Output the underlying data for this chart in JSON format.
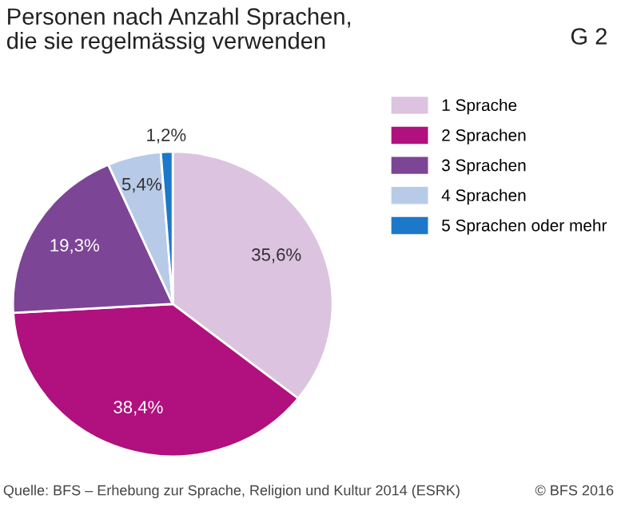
{
  "chart_data": {
    "type": "pie",
    "title": "Personen nach Anzahl Sprachen,\ndie sie regelmässig verwenden",
    "categories": [
      "1 Sprache",
      "2 Sprachen",
      "3 Sprachen",
      "4 Sprachen",
      "5 Sprachen oder mehr"
    ],
    "values": [
      35.6,
      38.4,
      19.3,
      5.4,
      1.2
    ],
    "value_labels": [
      "35,6%",
      "38,4%",
      "19,3%",
      "5,4%",
      "1,2%"
    ],
    "colors": [
      "#dcc3e0",
      "#b0117e",
      "#7d4596",
      "#b7cbe8",
      "#1c79c9"
    ],
    "legend": "right",
    "annotations": [
      "G 2",
      "Quelle: BFS – Erhebung zur Sprache, Religion und Kultur 2014 (ESRK)",
      "© BFS 2016"
    ]
  }
}
